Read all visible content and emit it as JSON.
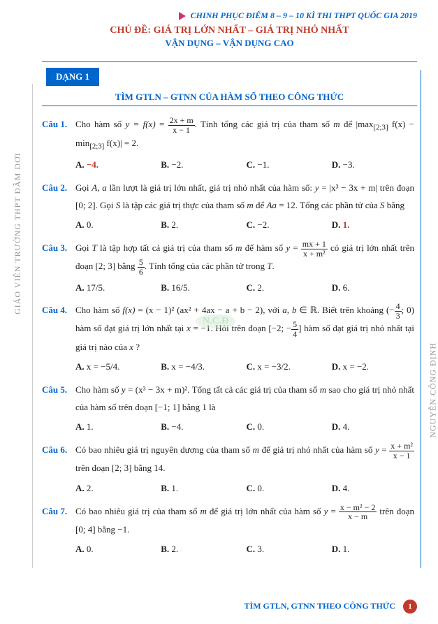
{
  "header": {
    "top_line": "CHINH PHỤC ĐIỂM 8 – 9 – 10 KÌ THI THPT QUỐC GIA 2019",
    "title": "CHỦ ĐỀ: GIÁ TRỊ LỚN NHẤT – GIÁ TRỊ NHỎ NHẤT",
    "subtitle": "VẬN DỤNG – VẬN DỤNG CAO"
  },
  "dang_label": "DẠNG 1",
  "section_title": "TÌM GTLN – GTNN CỦA HÀM SỐ THEO CÔNG THỨC",
  "side_left_text": "GIÁO VIÊN TRƯỜNG THPT ĐẦM DƠI",
  "side_right_text": "NGUYỄN CÔNG ĐỊNH",
  "watermark": "N.C.Đ",
  "footer": {
    "text": "TÌM GTLN, GTNN THEO CÔNG THỨC",
    "page": "1"
  },
  "questions": [
    {
      "label": "Câu 1.",
      "body_html": "Cho hàm số <i>y = f(x)</i> = <span class='frac'><span class='num'>2x + m</span><span class='den'>x − 1</span></span>. Tính tổng các giá trị của tham số <i>m</i> để |max<sub>[2;3]</sub> f(x) − min<sub>[2;3]</sub> f(x)| = 2.",
      "opts": [
        "−4.",
        "−2.",
        "−1.",
        "−3."
      ],
      "correct": 0
    },
    {
      "label": "Câu 2.",
      "body_html": "Gọi <i>A, a</i> lần lượt là giá trị lớn nhất, giá trị nhỏ nhất của hàm số: <i>y</i> = |x³ − 3x + m| trên đoạn [0; 2]. Gọi <i>S</i> là tập các giá trị thực của tham số <i>m</i> để <i>Aa</i> = 12. Tổng các phần tử của <i>S</i> bằng",
      "opts": [
        "0.",
        "2.",
        "−2.",
        "1."
      ],
      "correct": 3
    },
    {
      "label": "Câu 3.",
      "body_html": "Gọi <i>T</i> là tập hợp tất cả giá trị của tham số <i>m</i> để hàm số <i>y</i> = <span class='frac'><span class='num'>mx + 1</span><span class='den'>x + m²</span></span> có giá trị lớn nhất trên đoạn [2; 3] bằng <span class='frac'><span class='num'>5</span><span class='den'>6</span></span>. Tính tổng của các phần tử trong <i>T</i>.",
      "opts": [
        "17/5.",
        "16/5.",
        "2.",
        "6."
      ],
      "correct": -1
    },
    {
      "label": "Câu 4.",
      "body_html": "Cho hàm số <i>f(x)</i> = (x − 1)² (ax² + 4ax − a + b − 2), với <i>a, b</i> ∈ ℝ. Biết trên khoảng (−<span class='frac'><span class='num'>4</span><span class='den'>3</span></span>; 0) hàm số đạt giá trị lớn nhất tại <i>x</i> = −1. Hỏi trên đoạn [−2; −<span class='frac'><span class='num'>5</span><span class='den'>4</span></span>] hàm số đạt giá trị nhỏ nhất tại giá trị nào của <i>x</i> ?",
      "opts": [
        "x = −5/4.",
        "x = −4/3.",
        "x = −3/2.",
        "x = −2."
      ],
      "correct": -1
    },
    {
      "label": "Câu 5.",
      "body_html": "Cho hàm số <i>y</i> = (x³ − 3x + m)². Tổng tất cả các giá trị của tham số <i>m</i> sao cho giá trị nhỏ nhất của hàm số trên đoạn [−1; 1] bằng 1 là",
      "opts": [
        "1.",
        "−4.",
        "0.",
        "4."
      ],
      "correct": -1
    },
    {
      "label": "Câu 6.",
      "body_html": "Có bao nhiêu giá trị nguyên dương của tham số <i>m</i> để giá trị nhỏ nhất của hàm số <i>y</i> = <span class='frac'><span class='num'>x + m²</span><span class='den'>x − 1</span></span> trên đoạn [2; 3] bằng 14.",
      "opts": [
        "2.",
        "1.",
        "0.",
        "4."
      ],
      "correct": -1
    },
    {
      "label": "Câu 7.",
      "body_html": "Có bao nhiêu giá trị của tham số <i>m</i> để giá trị lớn nhất của hàm số <i>y</i> = <span class='frac'><span class='num'>x − m² − 2</span><span class='den'>x − m</span></span> trên đoạn [0; 4] bằng −1.",
      "opts": [
        "0.",
        "2.",
        "3.",
        "1."
      ],
      "correct": -1
    }
  ],
  "opt_labels": [
    "A.",
    "B.",
    "C.",
    "D."
  ]
}
